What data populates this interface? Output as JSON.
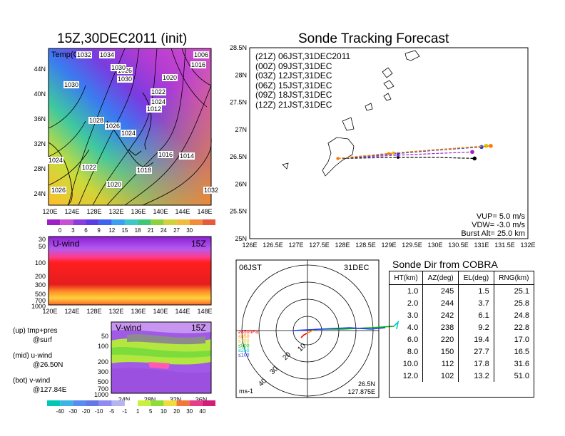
{
  "left": {
    "title": "15Z,30DEC2011 (init)",
    "top_map": {
      "inner_label": "Temp(C)",
      "lat_labels": [
        "44N",
        "40N",
        "36N",
        "32N",
        "28N",
        "24N"
      ],
      "lon_labels": [
        "120E",
        "124E",
        "128E",
        "132E",
        "136E",
        "140E",
        "144E",
        "148E"
      ],
      "isobar_labels": [
        "1032",
        "1030",
        "1026",
        "1030",
        "1028",
        "1026",
        "1024",
        "1022",
        "1020",
        "1018",
        "1016",
        "1014",
        "1020",
        "1022",
        "1024",
        "1012",
        "1006",
        "1016",
        "1032",
        "1026",
        "1024",
        "1030",
        "1034"
      ],
      "colorbar_ticks": [
        "0",
        "3",
        "6",
        "9",
        "12",
        "15",
        "18",
        "21",
        "24",
        "27",
        "30"
      ]
    },
    "u_panel": {
      "label": "U-wind",
      "time": "15Z",
      "y_labels": [
        "30",
        "50",
        "100",
        "200",
        "300",
        "500",
        "700",
        "1000"
      ],
      "x_labels": [
        "120E",
        "124E",
        "128E",
        "132E",
        "136E",
        "140E",
        "144E",
        "148E"
      ]
    },
    "v_panel": {
      "label": "V-wind",
      "time": "15Z",
      "y_labels": [
        "50",
        "100",
        "200",
        "300",
        "500",
        "700",
        "1000"
      ],
      "x_labels": [
        "24N",
        "28N",
        "32N",
        "36N"
      ]
    },
    "notes": [
      {
        "line1": "(up) tmp+pres",
        "line2": "@surf"
      },
      {
        "line1": "(mid) u-wind",
        "line2": "@26.50N"
      },
      {
        "line1": "(bot) v-wind",
        "line2": "@127.84E"
      }
    ],
    "wind_colorbar_ticks": [
      "-40",
      "-30",
      "-20",
      "-10",
      "-5",
      "-1",
      "1",
      "5",
      "10",
      "20",
      "30",
      "40"
    ]
  },
  "track": {
    "title": "Sonde Tracking Forecast",
    "lat_labels": [
      "28.5N",
      "28N",
      "27.5N",
      "27N",
      "26.5N",
      "26N",
      "25.5N",
      "25N"
    ],
    "lon_labels": [
      "126E",
      "126.5E",
      "127E",
      "127.5E",
      "128E",
      "128.5E",
      "129E",
      "129.5E",
      "130E",
      "130.5E",
      "131E",
      "131.5E",
      "132E"
    ],
    "legend": [
      {
        "text": "(21Z)  06JST,31DEC2011",
        "color": "#000000"
      },
      {
        "text": "(00Z)  09JST,31DEC",
        "color": "#a020c8"
      },
      {
        "text": "(03Z)  12JST,31DEC",
        "color": "#1e3cff"
      },
      {
        "text": "(06Z)  15JST,31DEC",
        "color": "#00b400"
      },
      {
        "text": "(09Z)  18JST,31DEC",
        "color": "#e6c800"
      },
      {
        "text": "(12Z)  21JST,31DEC",
        "color": "#ff7800"
      }
    ],
    "params": [
      "VUP=  5.0  m/s",
      "VDW= -3.0  m/s",
      "Burst Alt=  25.0  km"
    ]
  },
  "polar": {
    "top_left": "06JST",
    "top_right": "31DEC",
    "ring_labels": [
      "10",
      "20",
      "30",
      "40"
    ],
    "level_legend": [
      {
        "text": "≥850hPa",
        "color": "#ff0000"
      },
      {
        "text": "≤850",
        "color": "#ff8c00"
      },
      {
        "text": "≤700",
        "color": "#e6c800"
      },
      {
        "text": "≤500",
        "color": "#00b400"
      },
      {
        "text": "≤250",
        "color": "#00c8c8"
      },
      {
        "text": "≤100",
        "color": "#1e3cff"
      }
    ],
    "unit": "ms-1",
    "lat": "26.5N",
    "lon": "127.875E"
  },
  "sonde_table": {
    "title": "Sonde Dir from COBRA",
    "headers": [
      "HT(km)",
      "AZ(deg)",
      "EL(deg)",
      "RNG(km)"
    ],
    "rows": [
      [
        "1.0",
        "245",
        "1.5",
        "25.1"
      ],
      [
        "2.0",
        "244",
        "3.7",
        "25.8"
      ],
      [
        "3.0",
        "242",
        "6.1",
        "24.8"
      ],
      [
        "4.0",
        "238",
        "9.2",
        "22.8"
      ],
      [
        "6.0",
        "220",
        "19.4",
        "17.0"
      ],
      [
        "8.0",
        "150",
        "27.7",
        "16.5"
      ],
      [
        "10.0",
        "112",
        "17.8",
        "31.6"
      ],
      [
        "12.0",
        "102",
        "13.2",
        "51.0"
      ]
    ]
  },
  "chart_data": [
    {
      "type": "line",
      "title": "Sonde Tracking Forecast",
      "xlabel": "",
      "ylabel": "",
      "xlim": [
        126,
        132
      ],
      "ylim": [
        25,
        28.5
      ],
      "series": [
        {
          "name": "(21Z)  06JST,31DEC2011",
          "x": [
            127.9,
            128.5,
            129.2,
            130.0,
            130.85
          ],
          "y": [
            26.47,
            26.48,
            26.49,
            26.49,
            26.47
          ]
        },
        {
          "name": "(00Z)  09JST,31DEC",
          "x": [
            127.9,
            128.5,
            129.2,
            130.0,
            130.8
          ],
          "y": [
            26.47,
            26.5,
            26.53,
            26.56,
            26.59
          ]
        },
        {
          "name": "(03Z)  12JST,31DEC",
          "x": [
            127.9,
            128.5,
            129.2,
            130.0,
            131.0
          ],
          "y": [
            26.47,
            26.51,
            26.56,
            26.62,
            26.68
          ]
        },
        {
          "name": "(06Z)  15JST,31DEC",
          "x": [
            127.9,
            128.5,
            129.1,
            130.0,
            131.1
          ],
          "y": [
            26.47,
            26.52,
            26.57,
            26.63,
            26.7
          ]
        },
        {
          "name": "(09Z)  18JST,31DEC",
          "x": [
            127.9,
            128.5,
            129.1,
            130.0,
            131.1
          ],
          "y": [
            26.47,
            26.52,
            26.57,
            26.63,
            26.7
          ]
        },
        {
          "name": "(12Z)  21JST,31DEC",
          "x": [
            127.9,
            128.5,
            129.0,
            130.0,
            131.2
          ],
          "y": [
            26.47,
            26.52,
            26.56,
            26.63,
            26.7
          ]
        }
      ]
    },
    {
      "type": "table",
      "title": "Sonde Dir from COBRA",
      "headers": [
        "HT(km)",
        "AZ(deg)",
        "EL(deg)",
        "RNG(km)"
      ]
    }
  ]
}
